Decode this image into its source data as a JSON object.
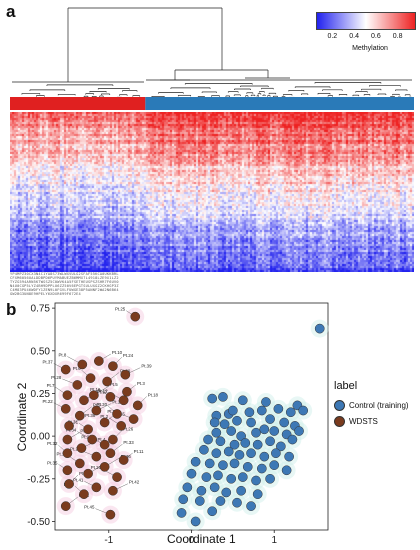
{
  "panel_a": {
    "letter": "a",
    "colorbar": {
      "title": "Methylation",
      "ticks": [
        "0.2",
        "0.4",
        "0.6",
        "0.8"
      ],
      "tick_values": [
        0.2,
        0.4,
        0.6,
        0.8
      ],
      "range": [
        0.05,
        0.95
      ],
      "low_color": "#2222ee",
      "mid_color": "#ffffff",
      "high_color": "#ee2222"
    },
    "groups": [
      {
        "color": "#e02020",
        "fraction": 0.335
      },
      {
        "color": "#2a7ab8",
        "fraction": 0.665
      }
    ]
  },
  "panel_b": {
    "letter": "b",
    "chart_data": {
      "type": "scatter",
      "xlabel": "Coordinate 1",
      "ylabel": "Coordinate 2",
      "xlim": [
        -1.65,
        1.65
      ],
      "ylim": [
        -0.55,
        0.78
      ],
      "xticks": [
        "-1",
        "0",
        "1"
      ],
      "xtick_values": [
        -1,
        0,
        1
      ],
      "yticks": [
        "0.75",
        "0.50",
        "0.25",
        "0.00",
        "-0.25",
        "-0.50"
      ],
      "ytick_values": [
        0.75,
        0.5,
        0.25,
        0.0,
        -0.25,
        -0.5
      ],
      "legend_title": "label",
      "legend_position": "right",
      "series": [
        {
          "name": "Control (training)",
          "color": "#3d78b5",
          "points": [
            [
              1.55,
              0.63
            ],
            [
              0.25,
              0.22
            ],
            [
              0.38,
              0.23
            ],
            [
              0.62,
              0.21
            ],
            [
              0.9,
              0.2
            ],
            [
              1.28,
              0.18
            ],
            [
              0.3,
              0.12
            ],
            [
              0.45,
              0.13
            ],
            [
              0.5,
              0.15
            ],
            [
              0.7,
              0.14
            ],
            [
              0.85,
              0.15
            ],
            [
              1.05,
              0.16
            ],
            [
              1.2,
              0.14
            ],
            [
              1.35,
              0.15
            ],
            [
              0.28,
              0.08
            ],
            [
              0.4,
              0.07
            ],
            [
              0.55,
              0.09
            ],
            [
              0.72,
              0.08
            ],
            [
              0.95,
              0.1
            ],
            [
              1.12,
              0.08
            ],
            [
              1.25,
              0.06
            ],
            [
              0.3,
              0.02
            ],
            [
              0.48,
              0.03
            ],
            [
              0.6,
              0.0
            ],
            [
              0.78,
              0.02
            ],
            [
              0.88,
              0.04
            ],
            [
              1.0,
              0.03
            ],
            [
              1.15,
              0.01
            ],
            [
              1.3,
              0.03
            ],
            [
              0.2,
              -0.02
            ],
            [
              0.35,
              -0.03
            ],
            [
              0.52,
              -0.05
            ],
            [
              0.65,
              -0.04
            ],
            [
              0.8,
              -0.05
            ],
            [
              0.95,
              -0.03
            ],
            [
              1.08,
              -0.06
            ],
            [
              1.22,
              -0.02
            ],
            [
              0.15,
              -0.08
            ],
            [
              0.3,
              -0.1
            ],
            [
              0.45,
              -0.09
            ],
            [
              0.58,
              -0.11
            ],
            [
              0.72,
              -0.1
            ],
            [
              0.88,
              -0.12
            ],
            [
              1.02,
              -0.1
            ],
            [
              1.18,
              -0.12
            ],
            [
              0.05,
              -0.15
            ],
            [
              0.22,
              -0.16
            ],
            [
              0.38,
              -0.17
            ],
            [
              0.52,
              -0.16
            ],
            [
              0.68,
              -0.18
            ],
            [
              0.85,
              -0.19
            ],
            [
              1.0,
              -0.17
            ],
            [
              1.15,
              -0.2
            ],
            [
              0.0,
              -0.22
            ],
            [
              0.18,
              -0.24
            ],
            [
              0.32,
              -0.23
            ],
            [
              0.48,
              -0.25
            ],
            [
              0.62,
              -0.24
            ],
            [
              0.78,
              -0.26
            ],
            [
              0.95,
              -0.25
            ],
            [
              -0.05,
              -0.3
            ],
            [
              0.12,
              -0.32
            ],
            [
              0.28,
              -0.3
            ],
            [
              0.42,
              -0.33
            ],
            [
              0.6,
              -0.32
            ],
            [
              0.8,
              -0.34
            ],
            [
              -0.1,
              -0.37
            ],
            [
              0.1,
              -0.38
            ],
            [
              0.35,
              -0.38
            ],
            [
              0.55,
              -0.39
            ],
            [
              0.72,
              -0.41
            ],
            [
              -0.12,
              -0.45
            ],
            [
              0.25,
              -0.44
            ],
            [
              0.05,
              -0.5
            ]
          ]
        },
        {
          "name": "WDSTS",
          "color": "#7a3b1e",
          "points": [
            [
              -0.68,
              0.7
            ],
            [
              -1.12,
              0.44
            ],
            [
              -1.32,
              0.42
            ],
            [
              -0.95,
              0.41
            ],
            [
              -1.52,
              0.39
            ],
            [
              -0.8,
              0.36
            ],
            [
              -1.22,
              0.34
            ],
            [
              -1.02,
              0.32
            ],
            [
              -1.38,
              0.3
            ],
            [
              -0.78,
              0.26
            ],
            [
              -1.5,
              0.24
            ],
            [
              -1.18,
              0.24
            ],
            [
              -0.98,
              0.23
            ],
            [
              -1.3,
              0.21
            ],
            [
              -0.82,
              0.21
            ],
            [
              -0.65,
              0.18
            ],
            [
              -1.52,
              0.16
            ],
            [
              -1.15,
              0.15
            ],
            [
              -0.9,
              0.13
            ],
            [
              -1.35,
              0.12
            ],
            [
              -0.7,
              0.1
            ],
            [
              -1.05,
              0.08
            ],
            [
              -0.85,
              0.06
            ],
            [
              -1.48,
              0.06
            ],
            [
              -1.25,
              0.04
            ],
            [
              -1.5,
              -0.02
            ],
            [
              -1.2,
              -0.02
            ],
            [
              -0.95,
              -0.02
            ],
            [
              -1.05,
              -0.05
            ],
            [
              -1.33,
              -0.07
            ],
            [
              -1.5,
              -0.1
            ],
            [
              -0.98,
              -0.1
            ],
            [
              -1.15,
              -0.12
            ],
            [
              -0.82,
              -0.14
            ],
            [
              -1.35,
              -0.16
            ],
            [
              -1.05,
              -0.18
            ],
            [
              -1.5,
              -0.2
            ],
            [
              -1.25,
              -0.22
            ],
            [
              -0.9,
              -0.24
            ],
            [
              -1.48,
              -0.28
            ],
            [
              -1.15,
              -0.3
            ],
            [
              -0.95,
              -0.32
            ],
            [
              -1.3,
              -0.34
            ],
            [
              -1.52,
              -0.41
            ],
            [
              -0.98,
              -0.46
            ]
          ],
          "point_labels": [
            "Pt.25",
            "Pt.10",
            "Pt.8",
            "Pt.24",
            "Pt.37",
            "Pt.39",
            "Pt.6",
            "Pt.29",
            "Pt.28",
            "Pt.3",
            "Pt.7",
            "Pt.5",
            "Pt.16",
            "Pt.17",
            "Pt.12",
            "Pt.18",
            "Pt.22",
            "Pt.14",
            "Pt.30",
            "Pt.9",
            "Pt.21",
            "Pt.15",
            "Pt.2",
            "Pt.38",
            "Pt.31",
            "Pt.19",
            "Pt.34",
            "Pt.26",
            "Pt.27",
            "Pt.4",
            "Pt.32",
            "Pt.33",
            "Pt.23",
            "Pt.11",
            "Pt.13",
            "Pt.36",
            "Pt.35",
            "Pt.1",
            "Pt.20",
            "Pt.40",
            "Pt.41",
            "Pt.42",
            "Pt.43",
            "Pt.44",
            "Pt.45"
          ]
        }
      ]
    }
  }
}
